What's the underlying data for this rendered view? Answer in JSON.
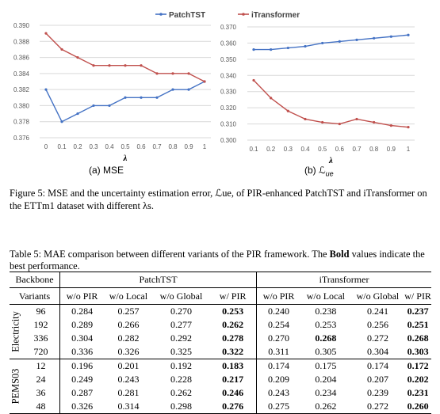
{
  "chart_data": [
    {
      "type": "line",
      "caption": "(a) MSE",
      "xlabel": "λ",
      "ylabel": "",
      "x": [
        0,
        0.1,
        0.2,
        0.3,
        0.4,
        0.5,
        0.6,
        0.7,
        0.8,
        0.9,
        1
      ],
      "x_ticks": [
        "0",
        "0.1",
        "0.2",
        "0.3",
        "0.4",
        "0.5",
        "0.6",
        "0.7",
        "0.8",
        "0.9",
        "1"
      ],
      "ylim": [
        0.376,
        0.39
      ],
      "y_ticks": [
        "0.376",
        "0.378",
        "0.380",
        "0.382",
        "0.384",
        "0.386",
        "0.388",
        "0.390"
      ],
      "grid": "horizontal",
      "legend_position": "top-right",
      "series": [
        {
          "name": "PatchTST",
          "color": "#4472C4",
          "values": [
            0.382,
            0.378,
            0.379,
            0.38,
            0.38,
            0.381,
            0.381,
            0.381,
            0.382,
            0.382,
            0.383
          ]
        },
        {
          "name": "iTransformer",
          "color": "#C0504D",
          "values": [
            0.389,
            0.387,
            0.386,
            0.385,
            0.385,
            0.385,
            0.385,
            0.384,
            0.384,
            0.384,
            0.383
          ]
        }
      ]
    },
    {
      "type": "line",
      "caption": "(b) ℒ",
      "caption_sub": "ue",
      "xlabel": "λ",
      "ylabel": "",
      "x": [
        0.1,
        0.2,
        0.3,
        0.4,
        0.5,
        0.6,
        0.7,
        0.8,
        0.9,
        1
      ],
      "x_ticks": [
        "0.1",
        "0.2",
        "0.3",
        "0.4",
        "0.5",
        "0.6",
        "0.7",
        "0.8",
        "0.9",
        "1"
      ],
      "ylim": [
        0.3,
        0.37
      ],
      "y_ticks": [
        "0.300",
        "0.310",
        "0.320",
        "0.330",
        "0.340",
        "0.350",
        "0.360",
        "0.370"
      ],
      "grid": "horizontal",
      "legend_position": "top-left",
      "series": [
        {
          "name": "PatchTST",
          "color": "#4472C4",
          "values": [
            0.356,
            0.356,
            0.357,
            0.358,
            0.36,
            0.361,
            0.362,
            0.363,
            0.364,
            0.365
          ]
        },
        {
          "name": "iTransformer",
          "color": "#C0504D",
          "values": [
            0.337,
            0.326,
            0.318,
            0.313,
            0.311,
            0.31,
            0.313,
            0.311,
            0.309,
            0.308
          ]
        }
      ]
    }
  ],
  "figure_caption": "Figure 5: MSE and the uncertainty estimation error, ℒue, of PIR-enhanced PatchTST and iTransformer on the ETTm1 dataset with different λs.",
  "table_caption": {
    "pre": "Table 5: MAE comparison between different variants of the PIR framework. The ",
    "bold": "Bold",
    "post": " values indicate the best performance."
  },
  "table": {
    "backbone_label": "Backbone",
    "variants_label": "Variants",
    "backbones": [
      "PatchTST",
      "iTransformer"
    ],
    "variant_names": [
      "w/o PIR",
      "w/o Local",
      "w/o Global",
      "w/ PIR"
    ],
    "groups": [
      {
        "name": "Electricity",
        "rows": [
          {
            "h": "96",
            "patchtst": [
              "0.284",
              "0.257",
              "0.270",
              "0.253"
            ],
            "itransformer": [
              "0.240",
              "0.238",
              "0.241",
              "0.237"
            ],
            "p_best": 3,
            "i_best": 3
          },
          {
            "h": "192",
            "patchtst": [
              "0.289",
              "0.266",
              "0.277",
              "0.262"
            ],
            "itransformer": [
              "0.254",
              "0.253",
              "0.256",
              "0.251"
            ],
            "p_best": 3,
            "i_best": 3
          },
          {
            "h": "336",
            "patchtst": [
              "0.304",
              "0.282",
              "0.292",
              "0.278"
            ],
            "itransformer": [
              "0.270",
              "0.268",
              "0.272",
              "0.268"
            ],
            "p_best": 3,
            "i_best": [
              1,
              3
            ]
          },
          {
            "h": "720",
            "patchtst": [
              "0.336",
              "0.326",
              "0.325",
              "0.322"
            ],
            "itransformer": [
              "0.311",
              "0.305",
              "0.304",
              "0.303"
            ],
            "p_best": 3,
            "i_best": 3
          }
        ]
      },
      {
        "name": "PEMS03",
        "rows": [
          {
            "h": "12",
            "patchtst": [
              "0.196",
              "0.201",
              "0.192",
              "0.183"
            ],
            "itransformer": [
              "0.174",
              "0.175",
              "0.174",
              "0.172"
            ],
            "p_best": 3,
            "i_best": 3
          },
          {
            "h": "24",
            "patchtst": [
              "0.249",
              "0.243",
              "0.228",
              "0.217"
            ],
            "itransformer": [
              "0.209",
              "0.204",
              "0.207",
              "0.202"
            ],
            "p_best": 3,
            "i_best": 3
          },
          {
            "h": "36",
            "patchtst": [
              "0.287",
              "0.281",
              "0.262",
              "0.246"
            ],
            "itransformer": [
              "0.243",
              "0.234",
              "0.239",
              "0.231"
            ],
            "p_best": 3,
            "i_best": 3
          },
          {
            "h": "48",
            "patchtst": [
              "0.326",
              "0.314",
              "0.298",
              "0.276"
            ],
            "itransformer": [
              "0.275",
              "0.262",
              "0.272",
              "0.260"
            ],
            "p_best": 3,
            "i_best": 3
          }
        ]
      }
    ]
  }
}
